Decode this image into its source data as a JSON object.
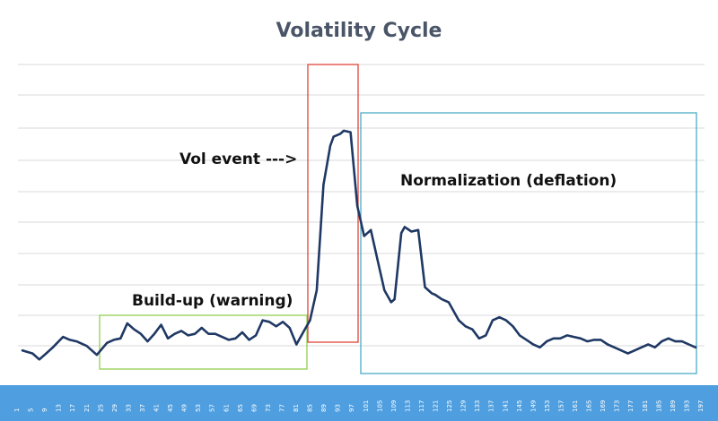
{
  "chart_data": {
    "type": "line",
    "title": "Volatility Cycle",
    "xlabel": "",
    "ylabel": "",
    "grid": true,
    "x_tick_labels": [
      "1",
      "5",
      "9",
      "13",
      "17",
      "21",
      "25",
      "29",
      "33",
      "37",
      "41",
      "45",
      "49",
      "53",
      "57",
      "61",
      "65",
      "69",
      "73",
      "77",
      "81",
      "85",
      "89",
      "93",
      "97",
      "101",
      "105",
      "109",
      "113",
      "117",
      "121",
      "125",
      "129",
      "133",
      "137",
      "141",
      "145",
      "149",
      "153",
      "157",
      "161",
      "165",
      "169",
      "173",
      "177",
      "181",
      "185",
      "189",
      "193",
      "197"
    ],
    "xlim": [
      1,
      200
    ],
    "ylim": [
      0,
      10
    ],
    "series": [
      {
        "color": "#1f3864",
        "x": [
          1,
          4,
          6,
          8,
          10,
          13,
          15,
          17,
          20,
          23,
          26,
          28,
          30,
          32,
          34,
          36,
          38,
          40,
          42,
          44,
          46,
          48,
          50,
          52,
          54,
          56,
          58,
          60,
          62,
          64,
          66,
          68,
          70,
          72,
          74,
          76,
          78,
          80,
          82,
          84,
          86,
          88,
          90,
          92,
          93,
          95,
          96,
          98,
          100,
          102,
          104,
          106,
          108,
          110,
          111,
          113,
          114,
          116,
          118,
          120,
          122,
          123,
          125,
          127,
          129,
          130,
          132,
          134,
          136,
          138,
          140,
          142,
          144,
          146,
          148,
          150,
          152,
          154,
          156,
          158,
          160,
          162,
          164,
          166,
          168,
          170,
          172,
          174,
          176,
          178,
          180,
          182,
          184,
          186,
          188,
          190,
          192,
          194,
          196,
          198,
          200
        ],
        "y": [
          0.5,
          0.4,
          0.2,
          0.4,
          0.6,
          0.95,
          0.85,
          0.8,
          0.65,
          0.35,
          0.75,
          0.85,
          0.9,
          1.4,
          1.2,
          1.05,
          0.8,
          1.05,
          1.35,
          0.9,
          1.05,
          1.15,
          1.0,
          1.05,
          1.25,
          1.05,
          1.05,
          0.95,
          0.85,
          0.9,
          1.1,
          0.85,
          1.0,
          1.5,
          1.45,
          1.3,
          1.45,
          1.25,
          0.7,
          1.1,
          1.5,
          2.5,
          6.0,
          7.3,
          7.6,
          7.7,
          7.8,
          7.75,
          5.3,
          4.3,
          4.5,
          3.5,
          2.5,
          2.1,
          2.2,
          4.4,
          4.6,
          4.45,
          4.5,
          2.6,
          2.4,
          2.35,
          2.2,
          2.1,
          1.7,
          1.5,
          1.3,
          1.2,
          0.9,
          1.0,
          1.5,
          1.6,
          1.5,
          1.3,
          1.0,
          0.85,
          0.7,
          0.6,
          0.8,
          0.9,
          0.9,
          1.0,
          0.95,
          0.9,
          0.8,
          0.85,
          0.85,
          0.7,
          0.6,
          0.5,
          0.4,
          0.5,
          0.6,
          0.7,
          0.6,
          0.8,
          0.9,
          0.8,
          0.8,
          0.7,
          0.6
        ]
      }
    ],
    "annotations": [
      {
        "text": "Build-up (warning)",
        "box_color": "#92d050",
        "x_range": [
          26,
          93
        ]
      },
      {
        "text": "Vol event --->",
        "box_color": "#e0443a",
        "x_range": [
          93,
          108
        ]
      },
      {
        "text": "Normalization (deflation)",
        "box_color": "#4bacc6",
        "x_range": [
          109,
          200
        ]
      }
    ],
    "band_color": "#4f9fe0"
  }
}
